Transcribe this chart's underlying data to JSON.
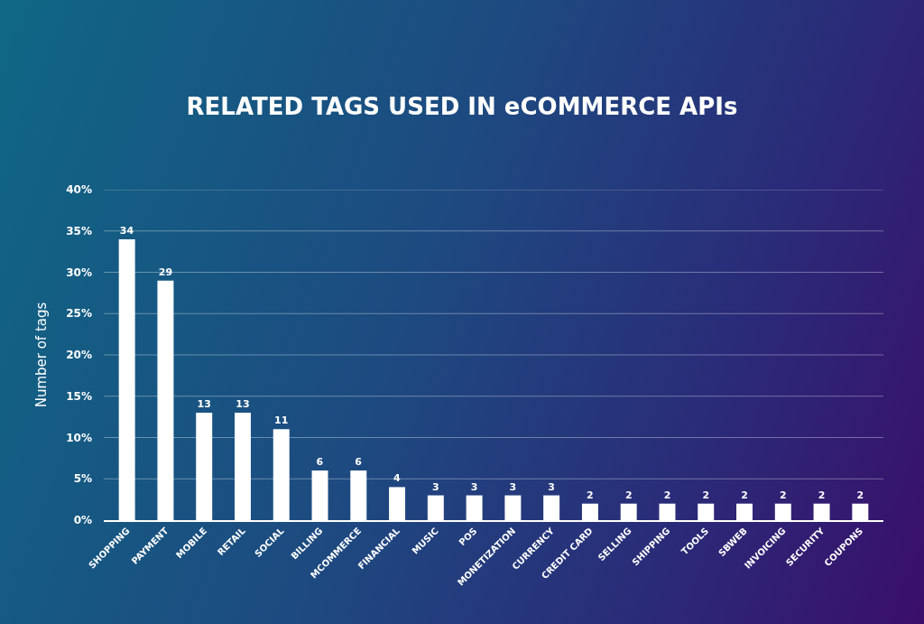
{
  "chart_data": {
    "type": "bar",
    "title": "RELATED TAGS USED IN eCOMMERCE APIs",
    "ylabel": "Number of tags",
    "categories": [
      "SHOPPING",
      "PAYMENT",
      "MOBILE",
      "RETAIL",
      "SOCIAL",
      "BILLING",
      "MCOMMERCE",
      "FINANCIAL",
      "MUSIC",
      "POS",
      "MONETIZATION",
      "CURRENCY",
      "CREDIT CARD",
      "SELLING",
      "SHIPPING",
      "TOOLS",
      "SBWEB",
      "INVOICING",
      "SECURITY",
      "COUPONS"
    ],
    "values": [
      34,
      29,
      13,
      13,
      11,
      6,
      6,
      4,
      3,
      3,
      3,
      3,
      2,
      2,
      2,
      2,
      2,
      2,
      2,
      2
    ],
    "data_labels": true,
    "color": "#ffffff",
    "ylim": [
      0,
      40
    ],
    "yticks": [
      {
        "value": 0,
        "label": "0%"
      },
      {
        "value": 5,
        "label": "5%"
      },
      {
        "value": 10,
        "label": "10%"
      },
      {
        "value": 15,
        "label": "15%"
      },
      {
        "value": 20,
        "label": "20%"
      },
      {
        "value": 25,
        "label": "25%"
      },
      {
        "value": 30,
        "label": "30%"
      },
      {
        "value": 35,
        "label": "35%"
      },
      {
        "value": 40,
        "label": "40%"
      }
    ],
    "grid": "y"
  }
}
